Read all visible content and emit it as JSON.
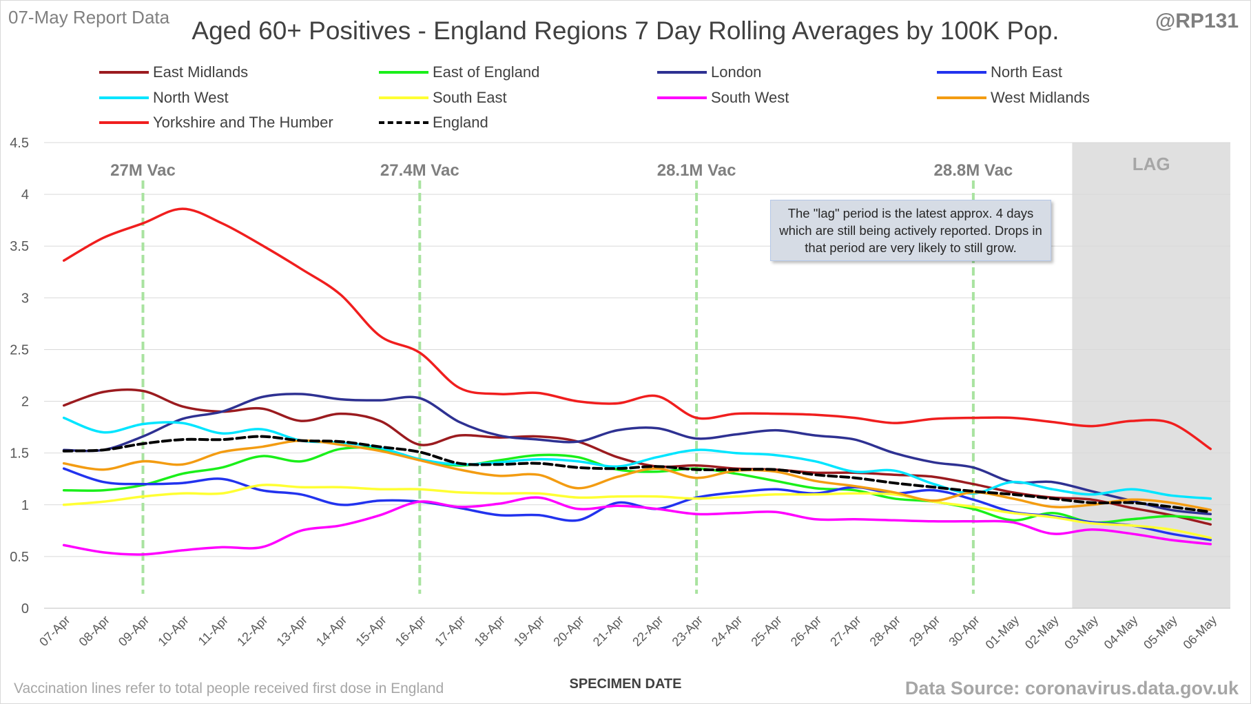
{
  "header": {
    "report_date": "07-May Report Data",
    "title": "Aged 60+ Positives - England Regions 7 Day Rolling Averages by 100K Pop.",
    "handle": "@RP131"
  },
  "footer": {
    "note": "Vaccination lines refer to total people received first dose in England",
    "source": "Data Source: coronavirus.data.gov.uk"
  },
  "annotation": {
    "lag_label": "LAG",
    "lag_note": "The \"lag\" period is the latest approx. 4 days which are still being actively reported. Drops in that period are very likely to still grow."
  },
  "chart_data": {
    "type": "line",
    "xlabel": "SPECIMEN DATE",
    "ylabel": "",
    "ylim": [
      0,
      4.5
    ],
    "yticks": [
      "0",
      "0.5",
      "1",
      "1.5",
      "2",
      "2.5",
      "3",
      "3.5",
      "4",
      "4.5"
    ],
    "grid": true,
    "legend_position": "top",
    "categories": [
      "07-Apr",
      "08-Apr",
      "09-Apr",
      "10-Apr",
      "11-Apr",
      "12-Apr",
      "13-Apr",
      "14-Apr",
      "15-Apr",
      "16-Apr",
      "17-Apr",
      "18-Apr",
      "19-Apr",
      "20-Apr",
      "21-Apr",
      "22-Apr",
      "23-Apr",
      "24-Apr",
      "25-Apr",
      "26-Apr",
      "27-Apr",
      "28-Apr",
      "29-Apr",
      "30-Apr",
      "01-May",
      "02-May",
      "03-May",
      "04-May",
      "05-May",
      "06-May"
    ],
    "lag_start": "03-May",
    "vaccination_lines": [
      {
        "label": "27M Vac",
        "x": "09-Apr"
      },
      {
        "label": "27.4M Vac",
        "x": "16-Apr"
      },
      {
        "label": "28.1M Vac",
        "x": "23-Apr"
      },
      {
        "label": "28.8M Vac",
        "x": "30-Apr"
      }
    ],
    "series": [
      {
        "name": "East Midlands",
        "color": "#9b1b1f",
        "dash": false,
        "values": [
          1.96,
          2.09,
          2.1,
          1.95,
          1.9,
          1.93,
          1.81,
          1.88,
          1.81,
          1.58,
          1.67,
          1.65,
          1.66,
          1.61,
          1.46,
          1.37,
          1.38,
          1.35,
          1.34,
          1.31,
          1.31,
          1.29,
          1.27,
          1.2,
          1.12,
          1.07,
          1.05,
          0.97,
          0.9,
          0.81
        ]
      },
      {
        "name": "East of England",
        "color": "#1aef1a",
        "dash": false,
        "values": [
          1.14,
          1.14,
          1.19,
          1.3,
          1.36,
          1.47,
          1.42,
          1.54,
          1.54,
          1.44,
          1.38,
          1.43,
          1.48,
          1.46,
          1.34,
          1.32,
          1.35,
          1.3,
          1.23,
          1.16,
          1.14,
          1.06,
          1.03,
          0.96,
          0.85,
          0.92,
          0.83,
          0.86,
          0.89,
          0.86
        ]
      },
      {
        "name": "London",
        "color": "#2e3192",
        "dash": false,
        "values": [
          1.53,
          1.53,
          1.66,
          1.83,
          1.9,
          2.04,
          2.07,
          2.02,
          2.01,
          2.03,
          1.8,
          1.67,
          1.63,
          1.61,
          1.72,
          1.74,
          1.64,
          1.68,
          1.72,
          1.67,
          1.63,
          1.5,
          1.41,
          1.36,
          1.22,
          1.22,
          1.13,
          1.04,
          0.95,
          0.91
        ]
      },
      {
        "name": "North East",
        "color": "#2233ee",
        "dash": false,
        "values": [
          1.35,
          1.22,
          1.2,
          1.21,
          1.25,
          1.14,
          1.1,
          1.0,
          1.04,
          1.03,
          0.97,
          0.9,
          0.9,
          0.85,
          1.02,
          0.96,
          1.07,
          1.12,
          1.15,
          1.11,
          1.17,
          1.11,
          1.14,
          1.05,
          0.93,
          0.89,
          0.83,
          0.8,
          0.72,
          0.66
        ]
      },
      {
        "name": "North West",
        "color": "#00e5ff",
        "dash": false,
        "values": [
          1.84,
          1.7,
          1.78,
          1.79,
          1.69,
          1.73,
          1.62,
          1.6,
          1.55,
          1.44,
          1.39,
          1.41,
          1.44,
          1.42,
          1.37,
          1.46,
          1.53,
          1.5,
          1.48,
          1.42,
          1.32,
          1.33,
          1.2,
          1.11,
          1.22,
          1.15,
          1.1,
          1.15,
          1.09,
          1.06
        ]
      },
      {
        "name": "South East",
        "color": "#ffff33",
        "dash": false,
        "values": [
          1.0,
          1.03,
          1.08,
          1.11,
          1.11,
          1.19,
          1.17,
          1.17,
          1.15,
          1.15,
          1.12,
          1.11,
          1.11,
          1.07,
          1.08,
          1.08,
          1.06,
          1.08,
          1.1,
          1.1,
          1.11,
          1.1,
          1.03,
          0.98,
          0.92,
          0.88,
          0.82,
          0.8,
          0.76,
          0.68
        ]
      },
      {
        "name": "South West",
        "color": "#ff00ff",
        "dash": false,
        "values": [
          0.61,
          0.54,
          0.52,
          0.56,
          0.59,
          0.59,
          0.75,
          0.8,
          0.9,
          1.03,
          0.98,
          1.01,
          1.07,
          0.96,
          0.99,
          0.96,
          0.91,
          0.92,
          0.93,
          0.86,
          0.86,
          0.85,
          0.84,
          0.84,
          0.83,
          0.72,
          0.76,
          0.72,
          0.66,
          0.62
        ]
      },
      {
        "name": "West Midlands",
        "color": "#f39c12",
        "dash": false,
        "values": [
          1.4,
          1.34,
          1.42,
          1.39,
          1.51,
          1.56,
          1.62,
          1.58,
          1.52,
          1.43,
          1.34,
          1.28,
          1.29,
          1.16,
          1.27,
          1.35,
          1.26,
          1.33,
          1.32,
          1.23,
          1.18,
          1.12,
          1.04,
          1.12,
          1.06,
          0.98,
          1.0,
          1.05,
          1.02,
          0.95
        ]
      },
      {
        "name": "Yorkshire and The Humber",
        "color": "#f01e1e",
        "dash": false,
        "values": [
          3.36,
          3.58,
          3.72,
          3.86,
          3.72,
          3.51,
          3.28,
          3.03,
          2.63,
          2.47,
          2.13,
          2.07,
          2.08,
          2.0,
          1.98,
          2.05,
          1.84,
          1.88,
          1.88,
          1.87,
          1.84,
          1.79,
          1.83,
          1.84,
          1.84,
          1.8,
          1.76,
          1.81,
          1.79,
          1.54
        ]
      },
      {
        "name": "England",
        "color": "#000000",
        "dash": true,
        "values": [
          1.52,
          1.53,
          1.59,
          1.63,
          1.63,
          1.66,
          1.62,
          1.61,
          1.56,
          1.51,
          1.4,
          1.39,
          1.4,
          1.36,
          1.35,
          1.37,
          1.34,
          1.34,
          1.34,
          1.29,
          1.26,
          1.21,
          1.17,
          1.13,
          1.1,
          1.06,
          1.02,
          1.02,
          0.98,
          0.93
        ]
      }
    ]
  }
}
